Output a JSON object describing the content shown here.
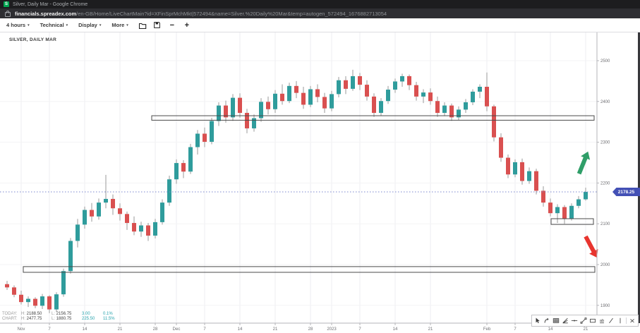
{
  "window": {
    "title": "Silver, Daily Mar - Google Chrome",
    "favicon_letter": "S"
  },
  "url_bar": {
    "domain": "financials.spreadex.com",
    "path": "/en-GB/Home/LiveChartMain?id=XFinSprMchMkt|572494&name=Silver.%20Daily%20Mar&temp=autogen_572494_1676882713054"
  },
  "toolbar": {
    "dropdowns": [
      "4 hours",
      "Technical",
      "Display",
      "More"
    ],
    "icons": [
      "open-folder",
      "save",
      "zoom-out",
      "zoom-in"
    ]
  },
  "chart": {
    "symbol_label": "SILVER, DAILY MAR",
    "price_tag": "2178.25",
    "h_label": "H:",
    "l_label": "L:",
    "info_rows": [
      {
        "label": "TODAY:",
        "h": "2188.50",
        "l": "2156.75",
        "change": "3.00",
        "change_pct": "0.1%"
      },
      {
        "label": "CHART:",
        "h": "2477.75",
        "l": "1880.75",
        "change": "225.50",
        "change_pct": "11.5%"
      }
    ]
  },
  "drawing_toolbar": {
    "tools": [
      "pointer",
      "curved-arrow",
      "fib-grid",
      "trend-fan",
      "horizontal-line",
      "trend-segment",
      "rectangle",
      "text",
      "diagonal-line",
      "vertical-line",
      "delete"
    ]
  },
  "colors": {
    "up": "#2f9c9c",
    "down": "#d95050",
    "wick": "#999999",
    "grid_v": "#ededf1",
    "grid_h": "#f3f3f5",
    "axis": "#b4b4b8",
    "tick_text": "#6e6e72",
    "price_line": "#7b87cf",
    "tag_bg": "#4350b5",
    "teal_value": "#29a3ad",
    "box_stroke": "#4a4a4a",
    "arrow_up": "#2f9e68",
    "arrow_down": "#e8342e"
  },
  "chart_data": {
    "type": "candlestick",
    "title": "Silver, Daily Mar",
    "timeframe_selected": "4 hours",
    "current_price": 2178.25,
    "ylim": [
      1856,
      2570
    ],
    "y_ticks": [
      2500,
      2400,
      2300,
      2200,
      2100,
      2000,
      1900
    ],
    "x_ticks": [
      {
        "label": "Nov",
        "i": 2
      },
      {
        "label": "7",
        "i": 6
      },
      {
        "label": "14",
        "i": 11
      },
      {
        "label": "21",
        "i": 16
      },
      {
        "label": "28",
        "i": 21
      },
      {
        "label": "Dec",
        "i": 24
      },
      {
        "label": "7",
        "i": 28
      },
      {
        "label": "14",
        "i": 33
      },
      {
        "label": "21",
        "i": 38
      },
      {
        "label": "28",
        "i": 43
      },
      {
        "label": "2023",
        "i": 46
      },
      {
        "label": "7",
        "i": 50
      },
      {
        "label": "14",
        "i": 55
      },
      {
        "label": "21",
        "i": 60
      },
      {
        "label": "Feb",
        "i": 68
      },
      {
        "label": "7",
        "i": 72
      },
      {
        "label": "14",
        "i": 77
      },
      {
        "label": "21",
        "i": 82
      }
    ],
    "candles": [
      [
        1952,
        1960,
        1938,
        1944
      ],
      [
        1944,
        1949,
        1920,
        1926
      ],
      [
        1926,
        1936,
        1902,
        1908
      ],
      [
        1908,
        1922,
        1896,
        1916
      ],
      [
        1916,
        1920,
        1893,
        1899
      ],
      [
        1899,
        1928,
        1891,
        1922
      ],
      [
        1922,
        1925,
        1880.75,
        1890
      ],
      [
        1890,
        1932,
        1884,
        1927
      ],
      [
        1927,
        1990,
        1921,
        1984
      ],
      [
        1984,
        2065,
        1978,
        2058
      ],
      [
        2058,
        2112,
        2042,
        2098
      ],
      [
        2098,
        2142,
        2088,
        2134
      ],
      [
        2134,
        2151,
        2105,
        2118
      ],
      [
        2118,
        2162,
        2110,
        2152
      ],
      [
        2152,
        2220,
        2138,
        2161
      ],
      [
        2161,
        2172,
        2122,
        2138
      ],
      [
        2138,
        2150,
        2108,
        2124
      ],
      [
        2124,
        2130,
        2085,
        2102
      ],
      [
        2102,
        2118,
        2072,
        2081
      ],
      [
        2081,
        2105,
        2068,
        2096
      ],
      [
        2096,
        2102,
        2058,
        2071
      ],
      [
        2071,
        2112,
        2064,
        2104
      ],
      [
        2104,
        2160,
        2098,
        2152
      ],
      [
        2152,
        2218,
        2144,
        2209
      ],
      [
        2209,
        2258,
        2198,
        2249
      ],
      [
        2249,
        2256,
        2212,
        2228
      ],
      [
        2228,
        2296,
        2222,
        2288
      ],
      [
        2288,
        2330,
        2270,
        2321
      ],
      [
        2321,
        2336,
        2288,
        2301
      ],
      [
        2301,
        2360,
        2295,
        2352
      ],
      [
        2352,
        2398,
        2340,
        2390
      ],
      [
        2390,
        2402,
        2348,
        2361
      ],
      [
        2361,
        2418,
        2352,
        2409
      ],
      [
        2409,
        2420,
        2360,
        2372
      ],
      [
        2372,
        2382,
        2322,
        2334
      ],
      [
        2334,
        2368,
        2326,
        2359
      ],
      [
        2359,
        2408,
        2350,
        2399
      ],
      [
        2399,
        2412,
        2368,
        2381
      ],
      [
        2381,
        2428,
        2372,
        2419
      ],
      [
        2419,
        2442,
        2392,
        2401
      ],
      [
        2401,
        2446,
        2396,
        2438
      ],
      [
        2438,
        2450,
        2408,
        2421
      ],
      [
        2421,
        2436,
        2382,
        2392
      ],
      [
        2392,
        2438,
        2386,
        2430
      ],
      [
        2430,
        2442,
        2398,
        2411
      ],
      [
        2411,
        2421,
        2372,
        2383
      ],
      [
        2383,
        2426,
        2376,
        2418
      ],
      [
        2418,
        2460,
        2410,
        2452
      ],
      [
        2452,
        2462,
        2418,
        2431
      ],
      [
        2431,
        2477.75,
        2426,
        2462
      ],
      [
        2462,
        2470,
        2428,
        2441
      ],
      [
        2441,
        2452,
        2402,
        2412
      ],
      [
        2412,
        2420,
        2362,
        2372
      ],
      [
        2372,
        2408,
        2366,
        2401
      ],
      [
        2401,
        2438,
        2394,
        2429
      ],
      [
        2429,
        2456,
        2421,
        2449
      ],
      [
        2449,
        2468,
        2436,
        2462
      ],
      [
        2462,
        2466,
        2428,
        2440
      ],
      [
        2440,
        2448,
        2402,
        2412
      ],
      [
        2412,
        2430,
        2396,
        2422
      ],
      [
        2422,
        2432,
        2392,
        2401
      ],
      [
        2401,
        2412,
        2362,
        2372
      ],
      [
        2372,
        2398,
        2364,
        2390
      ],
      [
        2390,
        2395,
        2352,
        2361
      ],
      [
        2361,
        2388,
        2354,
        2380
      ],
      [
        2380,
        2406,
        2372,
        2398
      ],
      [
        2398,
        2430,
        2391,
        2424
      ],
      [
        2424,
        2442,
        2408,
        2436
      ],
      [
        2436,
        2471,
        2376,
        2388
      ],
      [
        2388,
        2392,
        2302,
        2312
      ],
      [
        2312,
        2322,
        2252,
        2262
      ],
      [
        2262,
        2270,
        2212,
        2221
      ],
      [
        2221,
        2258,
        2214,
        2251
      ],
      [
        2251,
        2260,
        2196,
        2205
      ],
      [
        2205,
        2238,
        2198,
        2229
      ],
      [
        2229,
        2235,
        2172,
        2181
      ],
      [
        2181,
        2192,
        2142,
        2152
      ],
      [
        2152,
        2162,
        2118,
        2126
      ],
      [
        2126,
        2148,
        2102,
        2141
      ],
      [
        2141,
        2146,
        2100,
        2112
      ],
      [
        2112,
        2150,
        2108,
        2144
      ],
      [
        2144,
        2168,
        2138,
        2160
      ],
      [
        2160,
        2188.5,
        2156.75,
        2178.25
      ]
    ],
    "annotations": {
      "boxes": [
        {
          "i1": 20.5,
          "i2": 83.2,
          "p1": 2354,
          "p2": 2365
        },
        {
          "i1": 77.1,
          "i2": 83.1,
          "p1": 2098.5,
          "p2": 2112.5
        },
        {
          "i1": 2.3,
          "i2": 83.3,
          "p1": 1981,
          "p2": 1995
        }
      ],
      "arrows": [
        {
          "i": 81.7,
          "p": 2250,
          "dir": "up",
          "tilt": 22
        },
        {
          "i": 82.8,
          "p": 2043,
          "dir": "down",
          "tilt": -28
        }
      ],
      "price_line": {
        "price": 2178.25,
        "style": "dotted"
      }
    },
    "legend_position": "none",
    "grid": true
  }
}
